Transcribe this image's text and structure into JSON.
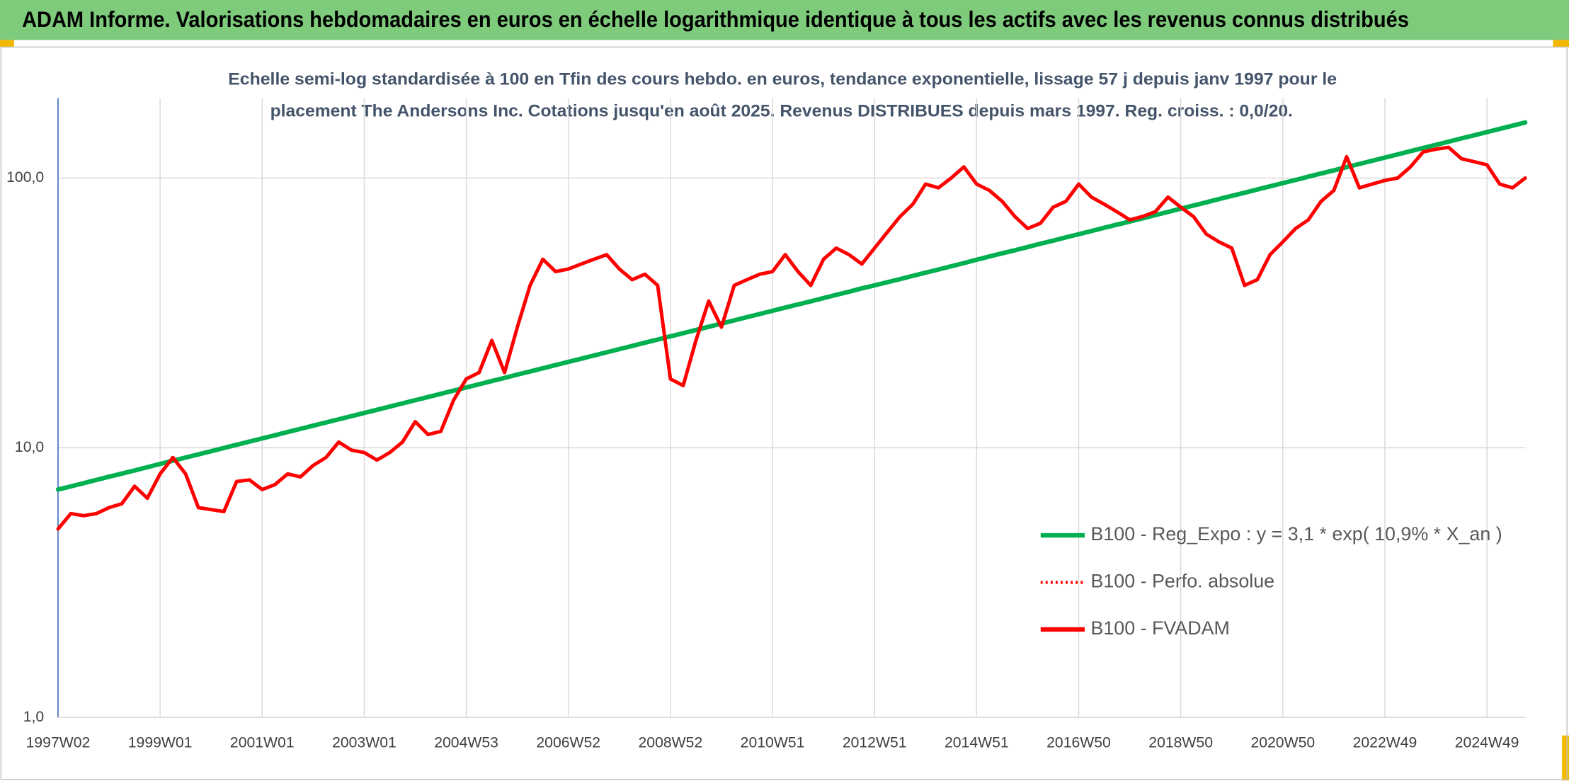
{
  "chart_data": {
    "type": "line",
    "title": "ADAM Informe. Valorisations hebdomadaires en euros en échelle logarithmique identique à tous les actifs avec les revenus connus distribués",
    "subtitle": [
      "Echelle semi-log standardisée à 100 en Tfin des cours hebdo. en euros, tendance exponentielle, lissage 57 j depuis janv 1997 pour le",
      "placement The Andersons Inc. Cotations jusqu'en août 2025. Revenus DISTRIBUES depuis mars 1997. Reg. croiss. : 0,0/20."
    ],
    "categories": [
      "1997W02",
      null,
      null,
      null,
      null,
      null,
      null,
      null,
      "1999W01",
      null,
      null,
      null,
      null,
      null,
      null,
      null,
      "2001W01",
      null,
      null,
      null,
      null,
      null,
      null,
      null,
      "2003W01",
      null,
      null,
      null,
      null,
      null,
      null,
      null,
      "2004W53",
      null,
      null,
      null,
      null,
      null,
      null,
      null,
      "2006W52",
      null,
      null,
      null,
      null,
      null,
      null,
      null,
      "2008W52",
      null,
      null,
      null,
      null,
      null,
      null,
      null,
      "2010W51",
      null,
      null,
      null,
      null,
      null,
      null,
      null,
      "2012W51",
      null,
      null,
      null,
      null,
      null,
      null,
      null,
      "2014W51",
      null,
      null,
      null,
      null,
      null,
      null,
      null,
      "2016W50",
      null,
      null,
      null,
      null,
      null,
      null,
      null,
      "2018W50",
      null,
      null,
      null,
      null,
      null,
      null,
      null,
      "2020W50",
      null,
      null,
      null,
      null,
      null,
      null,
      null,
      "2022W49",
      null,
      null,
      null,
      null,
      null,
      null,
      null,
      "2024W49",
      null,
      null,
      null
    ],
    "series": [
      {
        "name": "B100 - Reg_Expo : y = 3,1 * exp( 10,9% *  X_an )",
        "color": "#00b050",
        "dash": "solid",
        "values": [
          7.0,
          7.19,
          7.39,
          7.6,
          7.81,
          8.02,
          8.24,
          8.47,
          8.71,
          8.95,
          9.2,
          9.45,
          9.71,
          9.98,
          10.26,
          10.54,
          10.83,
          11.13,
          11.44,
          11.75,
          12.08,
          12.41,
          12.75,
          13.1,
          13.46,
          13.83,
          14.21,
          14.61,
          15.01,
          15.42,
          15.85,
          16.29,
          16.74,
          17.2,
          17.68,
          18.16,
          18.67,
          19.18,
          19.71,
          20.26,
          20.82,
          21.39,
          21.99,
          22.59,
          23.22,
          23.86,
          24.52,
          25.19,
          25.89,
          26.6,
          27.34,
          28.09,
          28.87,
          29.67,
          30.49,
          31.33,
          32.2,
          33.1,
          34.0,
          34.9,
          35.9,
          36.9,
          37.9,
          39.0,
          40.0,
          41.1,
          42.2,
          43.4,
          44.6,
          45.8,
          47.1,
          48.4,
          49.8,
          51.2,
          52.6,
          54.0,
          55.5,
          57.1,
          58.6,
          60.3,
          61.9,
          63.6,
          65.4,
          67.2,
          69.0,
          70.9,
          72.9,
          74.9,
          77.0,
          79.1,
          81.3,
          83.6,
          85.9,
          88.2,
          90.7,
          93.2,
          95.8,
          98.4,
          101.2,
          104.0,
          106.8,
          109.8,
          112.8,
          115.9,
          119.1,
          122.4,
          125.8,
          129.3,
          132.8,
          136.5,
          140.3,
          144.1,
          148.1,
          152.2,
          156.4,
          160.7
        ]
      },
      {
        "name": "B100 - Perfo. absolue",
        "color": "#ff0000",
        "dash": "dotted",
        "values": [
          5.0,
          5.7,
          5.6,
          5.7,
          6.0,
          6.2,
          7.2,
          6.5,
          8.0,
          9.2,
          8.0,
          6.0,
          5.9,
          5.8,
          7.5,
          7.6,
          7.0,
          7.3,
          8.0,
          7.8,
          8.6,
          9.2,
          10.5,
          9.8,
          9.6,
          9.0,
          9.6,
          10.5,
          12.5,
          11.2,
          11.5,
          15,
          18,
          19,
          25,
          19,
          28,
          40,
          50,
          45,
          46,
          48,
          50,
          52,
          46,
          42,
          44,
          40,
          18,
          17,
          25,
          35,
          28,
          40,
          42,
          44,
          45,
          52,
          45,
          40,
          50,
          55,
          52,
          48,
          55,
          63,
          72,
          80,
          95,
          92,
          100,
          110,
          95,
          90,
          82,
          72,
          65,
          68,
          78,
          82,
          95,
          85,
          80,
          75,
          70,
          72,
          75,
          85,
          78,
          72,
          62,
          58,
          55,
          40,
          42,
          52,
          58,
          65,
          70,
          82,
          90,
          120,
          92,
          95,
          98,
          100,
          110,
          125,
          128,
          130,
          118,
          115,
          112,
          95,
          92,
          100
        ]
      },
      {
        "name": "B100 - FVADAM",
        "color": "#ff0000",
        "dash": "solid",
        "values": [
          5.0,
          5.7,
          5.6,
          5.7,
          6.0,
          6.2,
          7.2,
          6.5,
          8.0,
          9.2,
          8.0,
          6.0,
          5.9,
          5.8,
          7.5,
          7.6,
          7.0,
          7.3,
          8.0,
          7.8,
          8.6,
          9.2,
          10.5,
          9.8,
          9.6,
          9.0,
          9.6,
          10.5,
          12.5,
          11.2,
          11.5,
          15,
          18,
          19,
          25,
          19,
          28,
          40,
          50,
          45,
          46,
          48,
          50,
          52,
          46,
          42,
          44,
          40,
          18,
          17,
          25,
          35,
          28,
          40,
          42,
          44,
          45,
          52,
          45,
          40,
          50,
          55,
          52,
          48,
          55,
          63,
          72,
          80,
          95,
          92,
          100,
          110,
          95,
          90,
          82,
          72,
          65,
          68,
          78,
          82,
          95,
          85,
          80,
          75,
          70,
          72,
          75,
          85,
          78,
          72,
          62,
          58,
          55,
          40,
          42,
          52,
          58,
          65,
          70,
          82,
          90,
          120,
          92,
          95,
          98,
          100,
          110,
          125,
          128,
          130,
          118,
          115,
          112,
          95,
          92,
          100
        ]
      }
    ],
    "ylim": [
      1,
      198
    ],
    "yticks": [
      {
        "value": 1,
        "label": "1,0"
      },
      {
        "value": 10,
        "label": "10,0"
      },
      {
        "value": 100,
        "label": "100,0"
      }
    ],
    "yscale": "log",
    "grid": true,
    "legend": "right"
  }
}
